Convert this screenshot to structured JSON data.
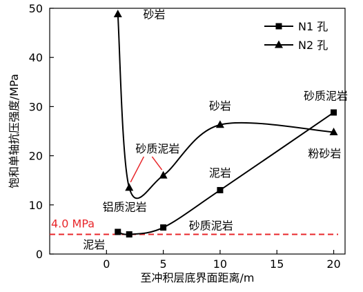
{
  "chart_data": {
    "type": "line",
    "xlabel": "至冲积层底界面距离/m",
    "ylabel": "饱和单轴抗压强度/MPa",
    "xlim": [
      -5,
      21
    ],
    "ylim": [
      0,
      50
    ],
    "xticks": [
      0,
      5,
      10,
      15,
      20
    ],
    "yticks": [
      0,
      10,
      20,
      30,
      40,
      50
    ],
    "grid": false,
    "legend_position": "top-right",
    "series": [
      {
        "name": "N1 孔",
        "marker": "square",
        "color": "#000000",
        "x": [
          1,
          2,
          5,
          10,
          20
        ],
        "y": [
          4.5,
          4.0,
          5.4,
          13.0,
          28.8
        ]
      },
      {
        "name": "N2 孔",
        "marker": "triangle",
        "color": "#000000",
        "x": [
          1,
          2,
          5,
          10,
          20
        ],
        "y": [
          48.8,
          13.5,
          16.0,
          26.3,
          24.8
        ]
      }
    ],
    "reference_line": {
      "label": "4.0 MPa",
      "y": 4.0,
      "color": "#e8262a",
      "style": "dashed"
    },
    "annotations": [
      {
        "text": "砂岩",
        "x": 4.2,
        "y": 48.8
      },
      {
        "text": "砂质泥岩",
        "x": 4.5,
        "y": 21.5
      },
      {
        "text": "铝质泥岩",
        "x": 1.6,
        "y": 9.6
      },
      {
        "text": "泥岩",
        "x": -1.1,
        "y": 2.0
      },
      {
        "text": "砂质泥岩",
        "x": 9.2,
        "y": 5.8
      },
      {
        "text": "砂岩",
        "x": 10.0,
        "y": 30.2
      },
      {
        "text": "泥岩",
        "x": 10.0,
        "y": 16.6
      },
      {
        "text": "砂质泥岩",
        "x": 19.3,
        "y": 32.2
      },
      {
        "text": "粉砂岩",
        "x": 19.2,
        "y": 20.5
      }
    ]
  }
}
